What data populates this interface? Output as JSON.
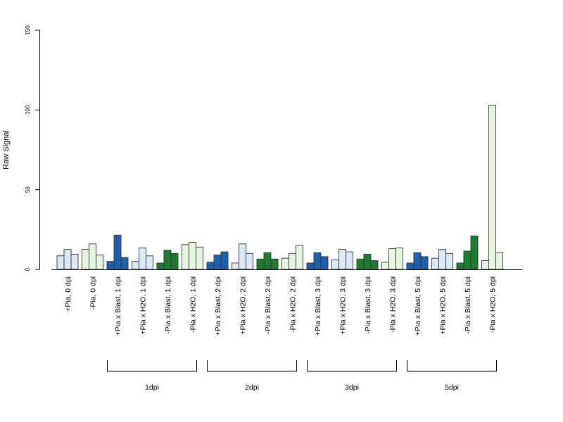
{
  "chart_data": {
    "type": "bar",
    "ylabel": "Raw Signal",
    "ylim": [
      0,
      150
    ],
    "yticks": [
      "0",
      "50",
      "100",
      "150"
    ],
    "ytick_values": [
      0,
      50,
      100,
      150
    ],
    "grid": false,
    "legend": "none",
    "categories": [
      "+Pia, 0 dpi",
      "-Pia, 0 dpi",
      "+Pia x Blast, 1 dpi",
      "+Pia x H2O, 1 dpi",
      "-Pia x Blast, 1 dpi",
      "-Pia x H2O, 1 dpi",
      "+Pia x Blast, 2 dpi",
      "+Pia x H2O, 2 dpi",
      "-Pia x Blast, 2 dpi",
      "-Pia x H2O, 2 dpi",
      "+Pia x Blast, 3 dpi",
      "+Pia x H2O, 3 dpi",
      "-Pia x Blast, 3 dpi",
      "-Pia x H2O, 3 dpi",
      "+Pia x Blast, 5 dpi",
      "+Pia x H2O, 5 dpi",
      "-Pia x Blast, 5 dpi",
      "-Pia x H2O, 5 dpi"
    ],
    "category_colors": [
      "#dae8f8",
      "#e4f5e0",
      "#1f5fad",
      "#dae8f8",
      "#1f7a32",
      "#e4f5e0",
      "#1f5fad",
      "#dae8f8",
      "#1f7a32",
      "#e4f5e0",
      "#1f5fad",
      "#dae8f8",
      "#1f7a32",
      "#e4f5e0",
      "#1f5fad",
      "#dae8f8",
      "#1f7a32",
      "#e4f5e0"
    ],
    "replicate_values": [
      [
        8.5,
        12.5,
        9.5
      ],
      [
        12.5,
        16,
        9
      ],
      [
        5,
        21.5,
        7.5
      ],
      [
        5,
        13.5,
        8.5
      ],
      [
        4,
        12,
        10
      ],
      [
        15.5,
        17,
        14
      ],
      [
        4.5,
        9,
        11
      ],
      [
        4,
        16,
        10
      ],
      [
        6.5,
        10.5,
        6.5
      ],
      [
        7,
        10,
        15
      ],
      [
        4,
        10.5,
        8
      ],
      [
        6,
        12.5,
        11
      ],
      [
        6.5,
        9.5,
        5.5
      ],
      [
        4.5,
        13,
        13.5
      ],
      [
        4,
        10.5,
        8
      ],
      [
        7,
        12.5,
        10
      ],
      [
        4,
        11.5,
        21
      ],
      [
        5.5,
        103,
        10.5
      ]
    ],
    "groups": [
      {
        "label": "1dpi",
        "first": 2,
        "last": 5
      },
      {
        "label": "2dpi",
        "first": 6,
        "last": 9
      },
      {
        "label": "3dpi",
        "first": 10,
        "last": 13
      },
      {
        "label": "5dpi",
        "first": 14,
        "last": 17
      }
    ],
    "bar_edge_color": "#333333"
  }
}
